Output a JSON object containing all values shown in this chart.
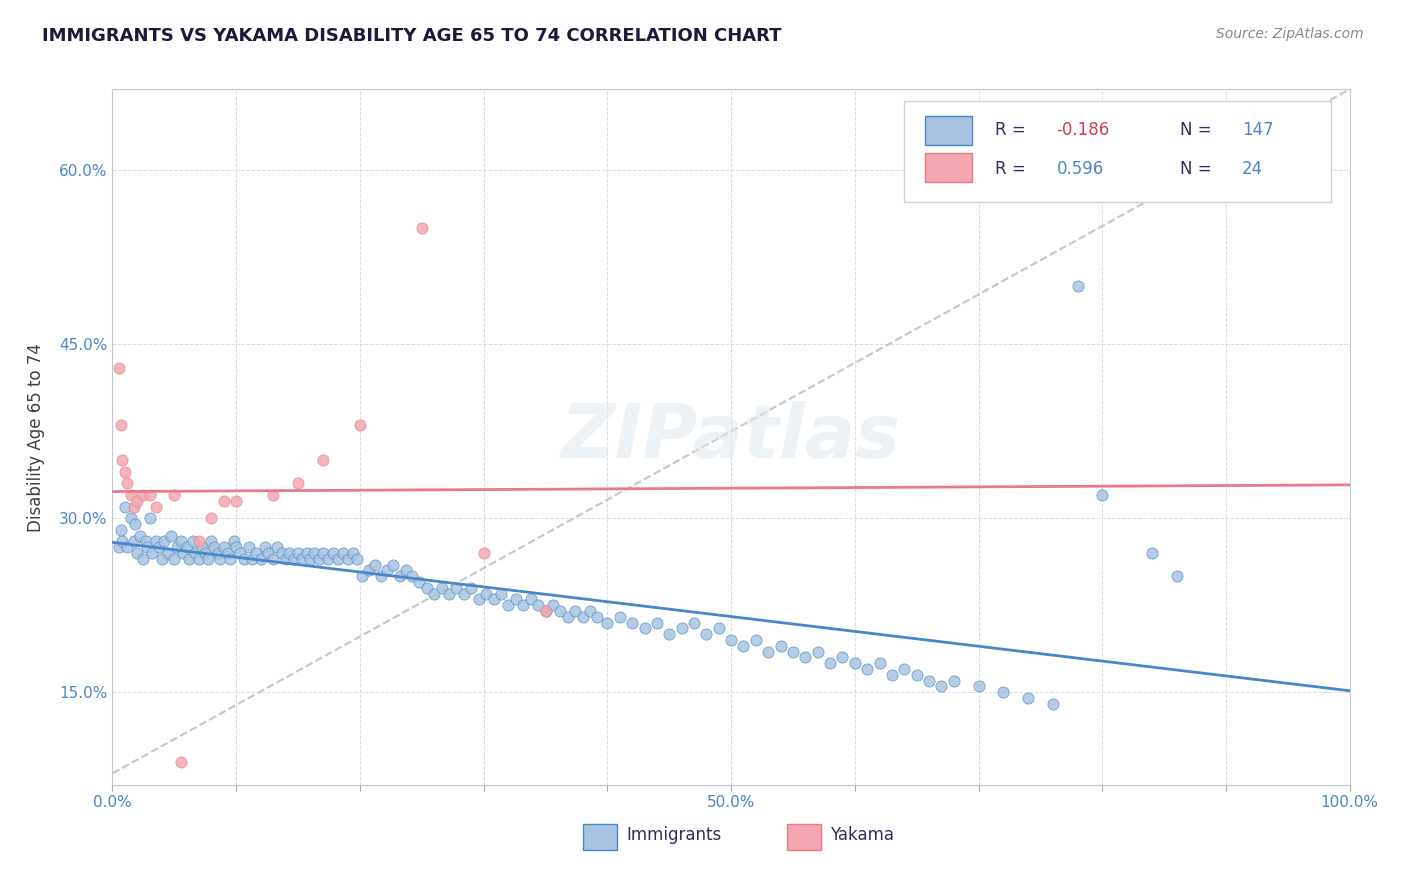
{
  "title": "IMMIGRANTS VS YAKAMA DISABILITY AGE 65 TO 74 CORRELATION CHART",
  "source": "Source: ZipAtlas.com",
  "ylabel": "Disability Age 65 to 74",
  "xlim": [
    0.0,
    1.0
  ],
  "ylim": [
    0.07,
    0.67
  ],
  "xticks": [
    0.0,
    0.1,
    0.2,
    0.3,
    0.4,
    0.5,
    0.6,
    0.7,
    0.8,
    0.9,
    1.0
  ],
  "xticklabels": [
    "0.0%",
    "",
    "",
    "",
    "",
    "50.0%",
    "",
    "",
    "",
    "",
    "100.0%"
  ],
  "yticks": [
    0.15,
    0.3,
    0.45,
    0.6
  ],
  "yticklabels": [
    "15.0%",
    "30.0%",
    "45.0%",
    "60.0%"
  ],
  "immigrants_color": "#a8c4e0",
  "yakama_color": "#f4a7b0",
  "trend_blue": "#4a86c8",
  "trend_pink": "#e87a8a",
  "immigrants_x": [
    0.005,
    0.007,
    0.008,
    0.01,
    0.012,
    0.015,
    0.017,
    0.018,
    0.02,
    0.022,
    0.025,
    0.027,
    0.028,
    0.03,
    0.032,
    0.035,
    0.038,
    0.04,
    0.042,
    0.045,
    0.047,
    0.05,
    0.052,
    0.055,
    0.057,
    0.06,
    0.062,
    0.065,
    0.067,
    0.07,
    0.072,
    0.075,
    0.077,
    0.08,
    0.082,
    0.085,
    0.087,
    0.09,
    0.093,
    0.095,
    0.098,
    0.1,
    0.103,
    0.106,
    0.11,
    0.113,
    0.116,
    0.12,
    0.123,
    0.126,
    0.13,
    0.133,
    0.137,
    0.14,
    0.143,
    0.147,
    0.15,
    0.153,
    0.157,
    0.16,
    0.163,
    0.167,
    0.17,
    0.174,
    0.178,
    0.182,
    0.186,
    0.19,
    0.194,
    0.198,
    0.202,
    0.207,
    0.212,
    0.217,
    0.222,
    0.227,
    0.232,
    0.237,
    0.242,
    0.248,
    0.254,
    0.26,
    0.266,
    0.272,
    0.278,
    0.284,
    0.29,
    0.296,
    0.302,
    0.308,
    0.314,
    0.32,
    0.326,
    0.332,
    0.338,
    0.344,
    0.35,
    0.356,
    0.362,
    0.368,
    0.374,
    0.38,
    0.386,
    0.392,
    0.4,
    0.41,
    0.42,
    0.43,
    0.44,
    0.45,
    0.46,
    0.47,
    0.48,
    0.49,
    0.5,
    0.51,
    0.52,
    0.53,
    0.54,
    0.55,
    0.56,
    0.57,
    0.58,
    0.59,
    0.6,
    0.61,
    0.62,
    0.63,
    0.64,
    0.65,
    0.66,
    0.67,
    0.68,
    0.7,
    0.72,
    0.74,
    0.76,
    0.78,
    0.8,
    0.84,
    0.86
  ],
  "immigrants_y": [
    0.275,
    0.29,
    0.28,
    0.31,
    0.275,
    0.3,
    0.28,
    0.295,
    0.27,
    0.285,
    0.265,
    0.28,
    0.275,
    0.3,
    0.27,
    0.28,
    0.275,
    0.265,
    0.28,
    0.27,
    0.285,
    0.265,
    0.275,
    0.28,
    0.27,
    0.275,
    0.265,
    0.28,
    0.27,
    0.265,
    0.275,
    0.27,
    0.265,
    0.28,
    0.275,
    0.27,
    0.265,
    0.275,
    0.27,
    0.265,
    0.28,
    0.275,
    0.27,
    0.265,
    0.275,
    0.265,
    0.27,
    0.265,
    0.275,
    0.27,
    0.265,
    0.275,
    0.27,
    0.265,
    0.27,
    0.265,
    0.27,
    0.265,
    0.27,
    0.265,
    0.27,
    0.265,
    0.27,
    0.265,
    0.27,
    0.265,
    0.27,
    0.265,
    0.27,
    0.265,
    0.25,
    0.255,
    0.26,
    0.25,
    0.255,
    0.26,
    0.25,
    0.255,
    0.25,
    0.245,
    0.24,
    0.235,
    0.24,
    0.235,
    0.24,
    0.235,
    0.24,
    0.23,
    0.235,
    0.23,
    0.235,
    0.225,
    0.23,
    0.225,
    0.23,
    0.225,
    0.22,
    0.225,
    0.22,
    0.215,
    0.22,
    0.215,
    0.22,
    0.215,
    0.21,
    0.215,
    0.21,
    0.205,
    0.21,
    0.2,
    0.205,
    0.21,
    0.2,
    0.205,
    0.195,
    0.19,
    0.195,
    0.185,
    0.19,
    0.185,
    0.18,
    0.185,
    0.175,
    0.18,
    0.175,
    0.17,
    0.175,
    0.165,
    0.17,
    0.165,
    0.16,
    0.155,
    0.16,
    0.155,
    0.15,
    0.145,
    0.14,
    0.5,
    0.32,
    0.27,
    0.25
  ],
  "yakama_x": [
    0.005,
    0.007,
    0.008,
    0.01,
    0.012,
    0.015,
    0.017,
    0.02,
    0.025,
    0.03,
    0.035,
    0.05,
    0.055,
    0.07,
    0.08,
    0.09,
    0.1,
    0.13,
    0.15,
    0.17,
    0.2,
    0.25,
    0.3,
    0.35
  ],
  "yakama_y": [
    0.43,
    0.38,
    0.35,
    0.34,
    0.33,
    0.32,
    0.31,
    0.315,
    0.32,
    0.32,
    0.31,
    0.32,
    0.09,
    0.28,
    0.3,
    0.315,
    0.315,
    0.32,
    0.33,
    0.35,
    0.38,
    0.55,
    0.27,
    0.22
  ]
}
